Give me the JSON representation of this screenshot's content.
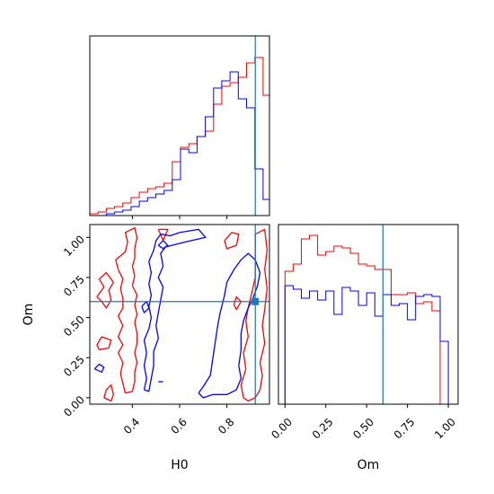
{
  "figure": {
    "kind": "corner plot",
    "colors": {
      "series_a": "#ff0000",
      "series_b": "#0000ff",
      "truth": "#1f77b4",
      "axes": "#000000"
    }
  },
  "chart_data": [
    {
      "type": "histogram",
      "panel": "top-left",
      "parameter": "H0",
      "xlim": [
        0.22,
        0.98
      ],
      "ylim": [
        0,
        1.0
      ],
      "truth": 0.92,
      "bin_edges": [
        0.22,
        0.2549,
        0.2898,
        0.3247,
        0.3596,
        0.3945,
        0.4294,
        0.4643,
        0.4992,
        0.5341,
        0.569,
        0.6039,
        0.6388,
        0.6737,
        0.7086,
        0.7435,
        0.7784,
        0.8133,
        0.8482,
        0.8831,
        0.918,
        0.9529,
        0.98
      ],
      "series": [
        {
          "color": "#ff0000",
          "values": [
            0.01,
            0.02,
            0.04,
            0.05,
            0.07,
            0.1,
            0.13,
            0.15,
            0.16,
            0.18,
            0.3,
            0.38,
            0.4,
            0.44,
            0.47,
            0.62,
            0.72,
            0.74,
            0.77,
            0.85,
            0.88,
            0.67
          ]
        },
        {
          "color": "#0000ff",
          "values": [
            0.0,
            0.0,
            0.01,
            0.02,
            0.03,
            0.05,
            0.08,
            0.1,
            0.12,
            0.14,
            0.2,
            0.37,
            0.35,
            0.44,
            0.55,
            0.71,
            0.75,
            0.8,
            0.65,
            0.6,
            0.26,
            0.09
          ]
        }
      ]
    },
    {
      "type": "contour",
      "panel": "bottom-left",
      "xlabel": "H0",
      "ylabel": "Om",
      "xlim": [
        0.22,
        0.98
      ],
      "ylim": [
        -0.04,
        1.08
      ],
      "xticks": [
        "0.4",
        "0.6",
        "0.8"
      ],
      "xtick_values": [
        0.4,
        0.6,
        0.8
      ],
      "yticks": [
        "0.00",
        "0.25",
        "0.50",
        "0.75",
        "1.00"
      ],
      "ytick_values": [
        0.0,
        0.25,
        0.5,
        0.75,
        1.0
      ],
      "truth": {
        "x": 0.92,
        "y": 0.6
      },
      "contours": [
        {
          "color": "#ff0000",
          "points": [
            [
              0.36,
              0.09
            ],
            [
              0.35,
              0.15
            ],
            [
              0.36,
              0.22
            ],
            [
              0.34,
              0.28
            ],
            [
              0.36,
              0.33
            ],
            [
              0.34,
              0.38
            ],
            [
              0.36,
              0.45
            ],
            [
              0.34,
              0.51
            ],
            [
              0.36,
              0.56
            ],
            [
              0.36,
              0.62
            ],
            [
              0.35,
              0.68
            ],
            [
              0.36,
              0.74
            ],
            [
              0.34,
              0.8
            ],
            [
              0.33,
              0.86
            ],
            [
              0.37,
              0.91
            ],
            [
              0.38,
              0.97
            ],
            [
              0.37,
              1.03
            ],
            [
              0.41,
              1.06
            ],
            [
              0.42,
              1.0
            ],
            [
              0.41,
              0.93
            ],
            [
              0.41,
              0.87
            ],
            [
              0.4,
              0.82
            ],
            [
              0.41,
              0.76
            ],
            [
              0.4,
              0.7
            ],
            [
              0.42,
              0.64
            ],
            [
              0.41,
              0.58
            ],
            [
              0.42,
              0.52
            ],
            [
              0.41,
              0.47
            ],
            [
              0.42,
              0.4
            ],
            [
              0.42,
              0.34
            ],
            [
              0.41,
              0.28
            ],
            [
              0.42,
              0.22
            ],
            [
              0.41,
              0.16
            ],
            [
              0.41,
              0.1
            ],
            [
              0.4,
              0.04
            ],
            [
              0.37,
              0.03
            ],
            [
              0.36,
              0.09
            ]
          ]
        },
        {
          "color": "#ff0000",
          "points": [
            [
              0.25,
              0.63
            ],
            [
              0.28,
              0.69
            ],
            [
              0.26,
              0.74
            ],
            [
              0.29,
              0.78
            ],
            [
              0.32,
              0.72
            ],
            [
              0.3,
              0.67
            ],
            [
              0.31,
              0.61
            ],
            [
              0.29,
              0.56
            ],
            [
              0.27,
              0.6
            ],
            [
              0.25,
              0.63
            ]
          ]
        },
        {
          "color": "#ff0000",
          "points": [
            [
              0.25,
              0.33
            ],
            [
              0.27,
              0.38
            ],
            [
              0.31,
              0.36
            ],
            [
              0.3,
              0.31
            ],
            [
              0.26,
              0.3
            ],
            [
              0.25,
              0.33
            ]
          ]
        },
        {
          "color": "#ff0000",
          "points": [
            [
              0.28,
              0.0
            ],
            [
              0.29,
              0.05
            ],
            [
              0.31,
              0.08
            ],
            [
              0.32,
              0.02
            ],
            [
              0.31,
              -0.02
            ],
            [
              0.28,
              0.0
            ]
          ]
        },
        {
          "color": "#ff0000",
          "points": [
            [
              0.51,
              1.05
            ],
            [
              0.53,
              0.98
            ],
            [
              0.55,
              1.05
            ],
            [
              0.51,
              1.05
            ]
          ]
        },
        {
          "color": "#ff0000",
          "points": [
            [
              0.79,
              0.98
            ],
            [
              0.82,
              1.03
            ],
            [
              0.85,
              1.02
            ],
            [
              0.84,
              0.95
            ],
            [
              0.8,
              0.93
            ],
            [
              0.79,
              0.98
            ]
          ]
        },
        {
          "color": "#ff0000",
          "points": [
            [
              0.83,
              0.58
            ],
            [
              0.84,
              0.63
            ],
            [
              0.86,
              0.6
            ],
            [
              0.84,
              0.55
            ],
            [
              0.83,
              0.58
            ]
          ]
        },
        {
          "color": "#ff0000",
          "points": [
            [
              0.87,
              0.0
            ],
            [
              0.86,
              0.08
            ],
            [
              0.88,
              0.18
            ],
            [
              0.87,
              0.28
            ],
            [
              0.89,
              0.38
            ],
            [
              0.88,
              0.48
            ],
            [
              0.89,
              0.56
            ],
            [
              0.9,
              0.62
            ],
            [
              0.92,
              0.75
            ],
            [
              0.92,
              0.9
            ],
            [
              0.92,
              1.02
            ],
            [
              0.96,
              1.05
            ],
            [
              0.97,
              0.92
            ],
            [
              0.96,
              0.8
            ],
            [
              0.97,
              0.68
            ],
            [
              0.96,
              0.55
            ],
            [
              0.95,
              0.45
            ],
            [
              0.96,
              0.34
            ],
            [
              0.94,
              0.22
            ],
            [
              0.95,
              0.14
            ],
            [
              0.94,
              0.05
            ],
            [
              0.92,
              0.0
            ],
            [
              0.89,
              -0.02
            ],
            [
              0.87,
              0.0
            ]
          ]
        },
        {
          "color": "#0000ff",
          "points": [
            [
              0.45,
              0.05
            ],
            [
              0.46,
              0.12
            ],
            [
              0.45,
              0.2
            ],
            [
              0.46,
              0.28
            ],
            [
              0.45,
              0.36
            ],
            [
              0.47,
              0.43
            ],
            [
              0.48,
              0.5
            ],
            [
              0.47,
              0.57
            ],
            [
              0.48,
              0.64
            ],
            [
              0.47,
              0.71
            ],
            [
              0.48,
              0.78
            ],
            [
              0.47,
              0.85
            ],
            [
              0.49,
              0.92
            ],
            [
              0.5,
              0.98
            ],
            [
              0.52,
              1.02
            ],
            [
              0.56,
              1.01
            ],
            [
              0.6,
              1.03
            ],
            [
              0.68,
              1.05
            ],
            [
              0.71,
              1.0
            ],
            [
              0.62,
              0.97
            ],
            [
              0.54,
              0.94
            ],
            [
              0.52,
              0.9
            ],
            [
              0.53,
              0.82
            ],
            [
              0.51,
              0.75
            ],
            [
              0.53,
              0.69
            ],
            [
              0.52,
              0.61
            ],
            [
              0.51,
              0.53
            ],
            [
              0.5,
              0.45
            ],
            [
              0.51,
              0.37
            ],
            [
              0.49,
              0.29
            ],
            [
              0.49,
              0.2
            ],
            [
              0.48,
              0.12
            ],
            [
              0.47,
              0.04
            ],
            [
              0.45,
              0.05
            ]
          ]
        },
        {
          "color": "#0000ff",
          "points": [
            [
              0.51,
              0.95
            ],
            [
              0.53,
              0.98
            ],
            [
              0.55,
              0.95
            ],
            [
              0.53,
              0.93
            ],
            [
              0.51,
              0.95
            ]
          ]
        },
        {
          "color": "#0000ff",
          "points": [
            [
              0.44,
              0.57
            ],
            [
              0.46,
              0.6
            ],
            [
              0.47,
              0.56
            ],
            [
              0.45,
              0.53
            ],
            [
              0.44,
              0.57
            ]
          ]
        },
        {
          "color": "#0000ff",
          "points": [
            [
              0.24,
              0.18
            ],
            [
              0.26,
              0.21
            ],
            [
              0.28,
              0.19
            ],
            [
              0.27,
              0.16
            ],
            [
              0.24,
              0.18
            ]
          ]
        },
        {
          "color": "#0000ff",
          "points": [
            [
              0.51,
              0.1
            ],
            [
              0.53,
              0.1
            ]
          ]
        },
        {
          "color": "#0000ff",
          "points": [
            [
              0.68,
              0.03
            ],
            [
              0.7,
              0.07
            ],
            [
              0.73,
              0.14
            ],
            [
              0.74,
              0.24
            ],
            [
              0.75,
              0.34
            ],
            [
              0.76,
              0.44
            ],
            [
              0.77,
              0.52
            ],
            [
              0.78,
              0.58
            ],
            [
              0.79,
              0.64
            ],
            [
              0.8,
              0.72
            ],
            [
              0.83,
              0.8
            ],
            [
              0.86,
              0.86
            ],
            [
              0.89,
              0.9
            ],
            [
              0.92,
              0.86
            ],
            [
              0.94,
              0.78
            ],
            [
              0.93,
              0.7
            ],
            [
              0.91,
              0.62
            ],
            [
              0.89,
              0.56
            ],
            [
              0.87,
              0.48
            ],
            [
              0.86,
              0.4
            ],
            [
              0.86,
              0.3
            ],
            [
              0.85,
              0.2
            ],
            [
              0.86,
              0.12
            ],
            [
              0.84,
              0.05
            ],
            [
              0.8,
              0.02
            ],
            [
              0.74,
              0.02
            ],
            [
              0.7,
              0.0
            ],
            [
              0.68,
              0.03
            ]
          ]
        }
      ]
    },
    {
      "type": "histogram",
      "panel": "bottom-right",
      "parameter": "Om",
      "xlabel": "Om",
      "xlim": [
        -0.04,
        1.06
      ],
      "ylim": [
        0,
        1.0
      ],
      "truth": 0.6,
      "xticks": [
        "0.00",
        "0.25",
        "0.50",
        "0.75",
        "1.00"
      ],
      "xtick_values": [
        0.0,
        0.25,
        0.5,
        0.75,
        1.0
      ],
      "bin_edges": [
        0.0,
        0.05,
        0.1,
        0.15,
        0.2,
        0.25,
        0.3,
        0.35,
        0.4,
        0.45,
        0.5,
        0.55,
        0.6,
        0.65,
        0.7,
        0.75,
        0.8,
        0.85,
        0.9,
        0.95,
        1.0
      ],
      "series": [
        {
          "color": "#ff0000",
          "values": [
            0.74,
            0.78,
            0.92,
            0.94,
            0.83,
            0.85,
            0.88,
            0.87,
            0.84,
            0.78,
            0.77,
            0.75,
            0.75,
            0.61,
            0.61,
            0.62,
            0.56,
            0.57,
            0.52,
            0.0
          ]
        },
        {
          "color": "#0000ff",
          "values": [
            0.66,
            0.64,
            0.59,
            0.63,
            0.58,
            0.63,
            0.5,
            0.65,
            0.63,
            0.55,
            0.62,
            0.49,
            0.61,
            0.55,
            0.56,
            0.47,
            0.6,
            0.61,
            0.6,
            0.35
          ]
        }
      ]
    }
  ]
}
